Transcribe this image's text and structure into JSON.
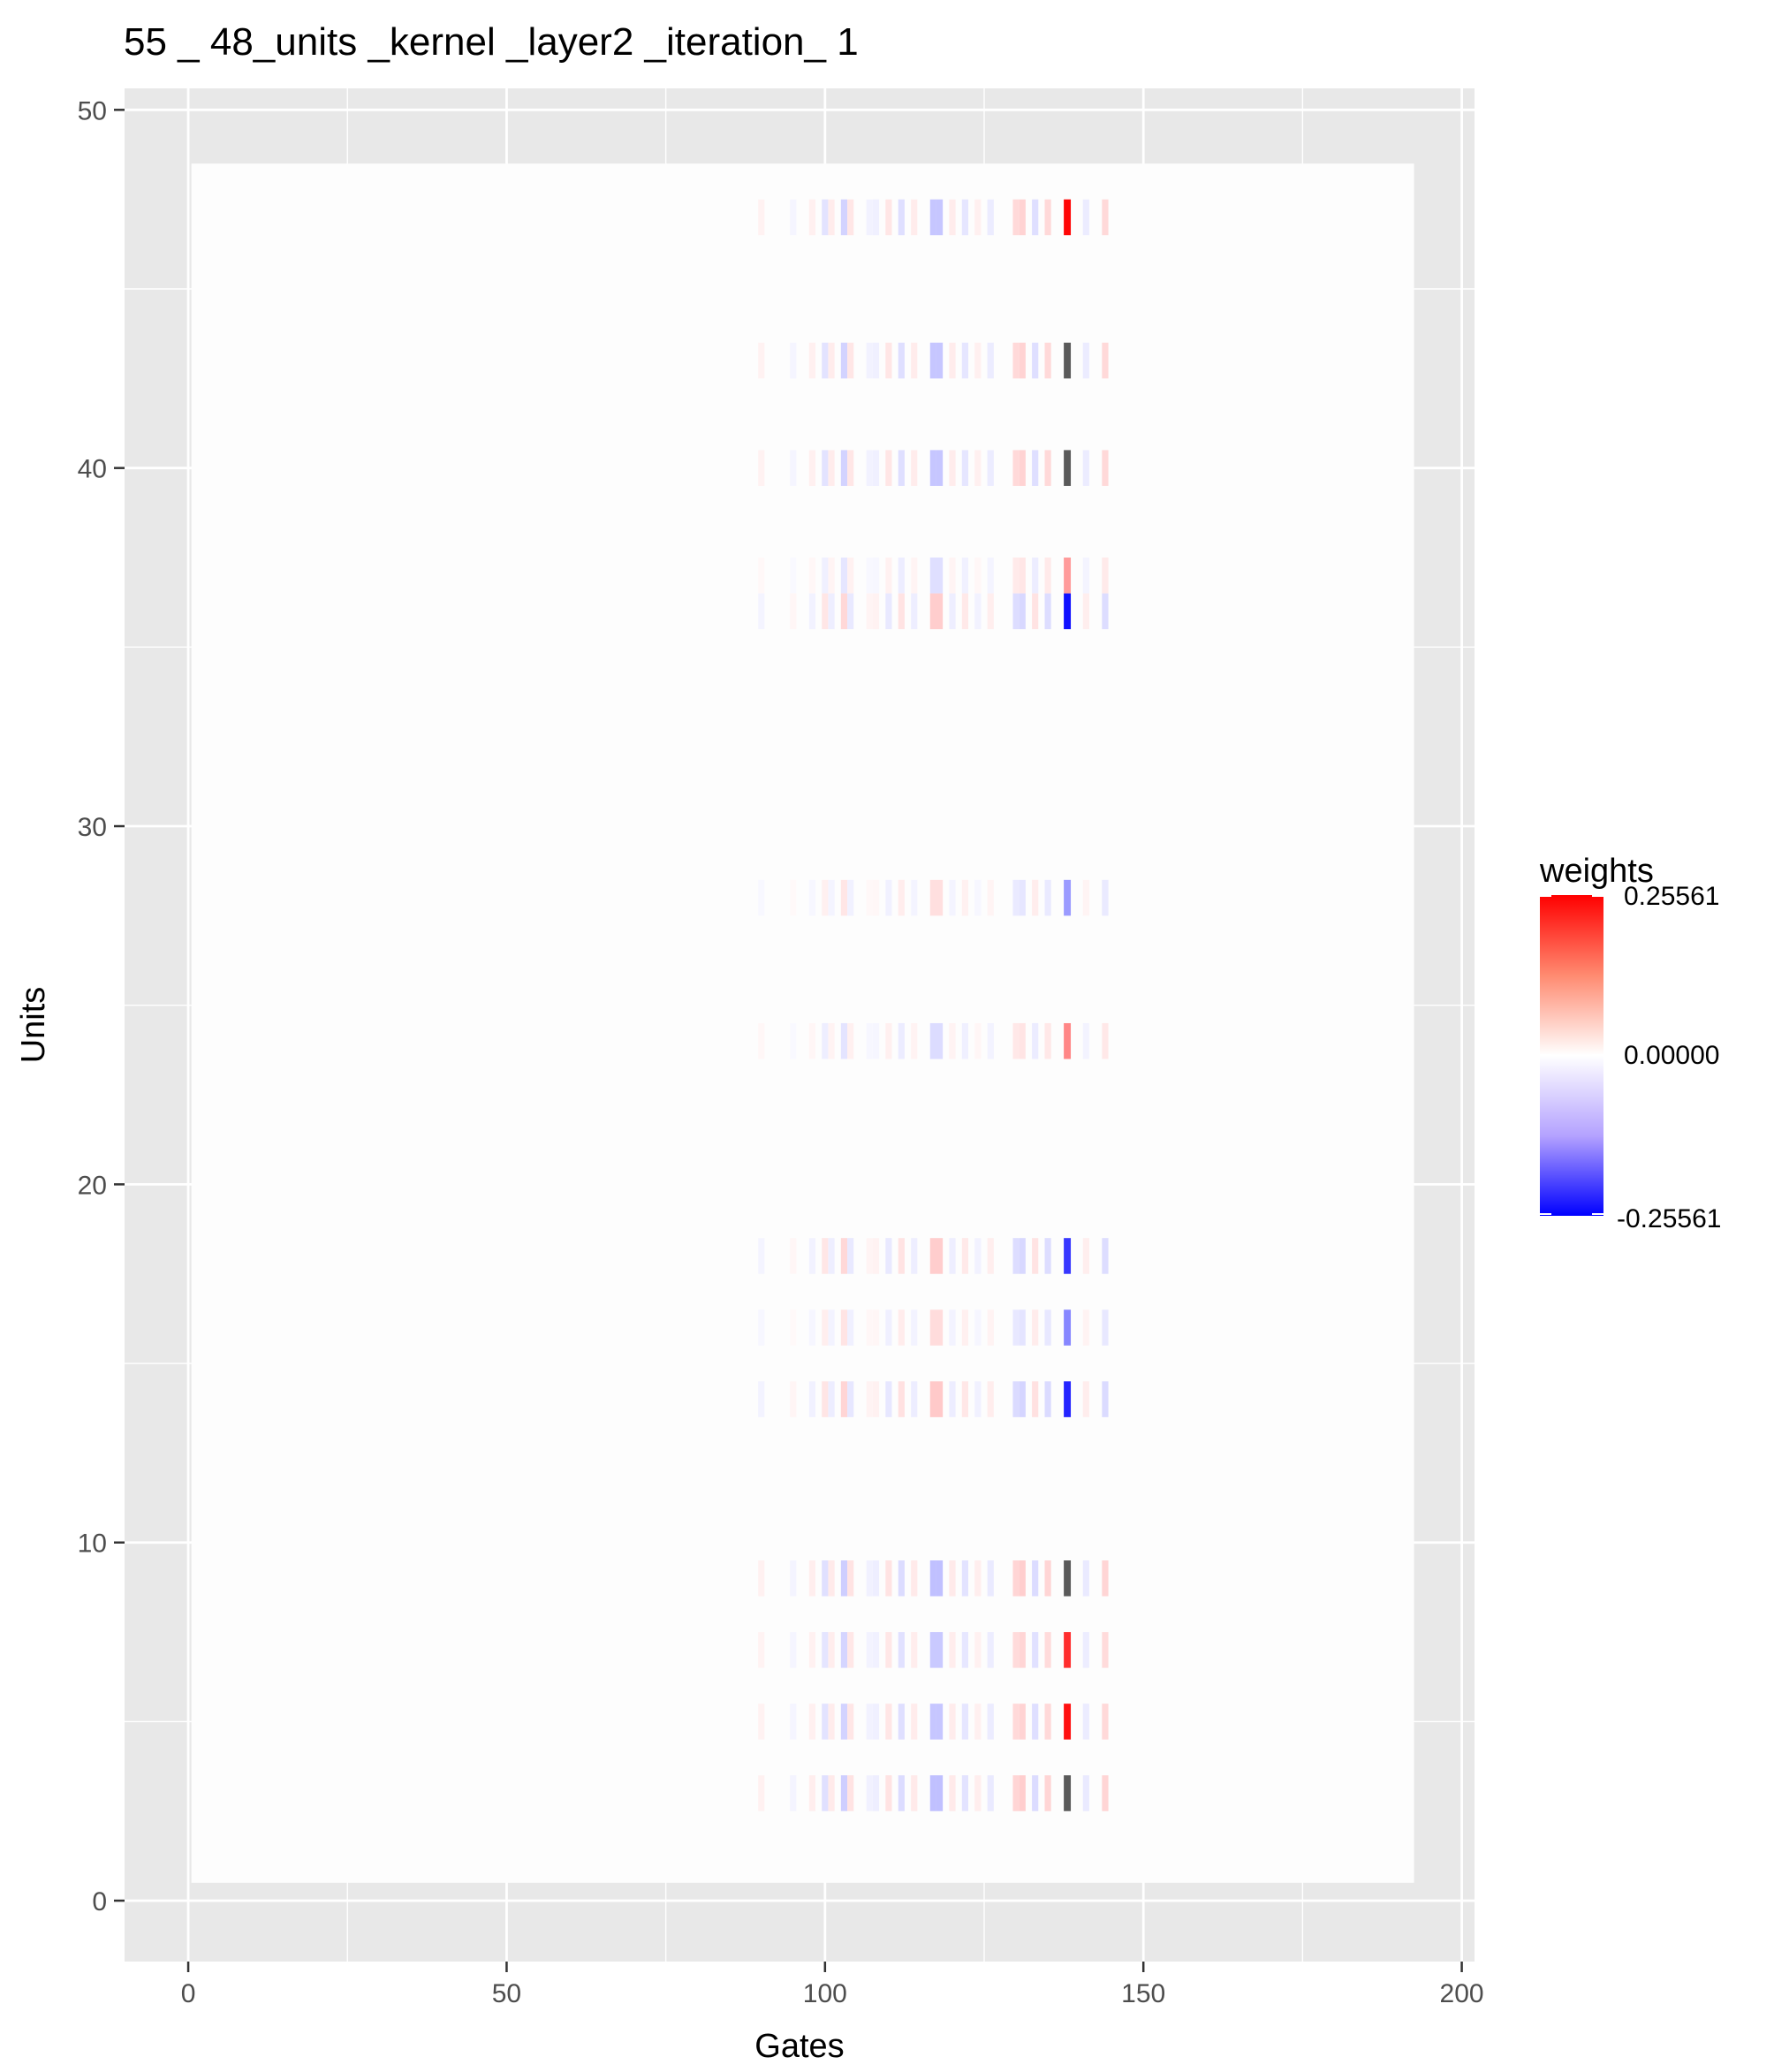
{
  "chart_data": {
    "type": "heatmap",
    "title": "55 _ 48_units _kernel _layer2 _iteration_ 1",
    "xlabel": "Gates",
    "ylabel": "Units",
    "xlim": [
      -10,
      202
    ],
    "ylim": [
      -1.7,
      50.6
    ],
    "x_ticks": [
      0,
      50,
      100,
      150,
      200
    ],
    "x_tick_labels": [
      "0",
      "50",
      "100",
      "150",
      "200"
    ],
    "y_ticks": [
      0,
      10,
      20,
      30,
      40,
      50
    ],
    "y_tick_labels": [
      "0",
      "10",
      "20",
      "30",
      "40",
      "50"
    ],
    "x_range": [
      1,
      192
    ],
    "y_range": [
      1,
      48
    ],
    "grid": true,
    "legend": {
      "title": "weights",
      "placement": "right",
      "labels": [
        "0.25561",
        "0.00000",
        "-0.25561"
      ],
      "limits": [
        -0.25561,
        0.25561
      ],
      "colors": {
        "high": "#ff0000",
        "mid": "#ffffff",
        "low": "#0000ff",
        "na": "#5a5a5a"
      }
    },
    "active_rows": [
      3,
      5,
      7,
      9,
      14,
      16,
      18,
      24,
      28,
      36,
      37,
      40,
      43,
      47
    ],
    "row_strength": {
      "3": 1.0,
      "5": 0.9,
      "7": 0.85,
      "9": 1.0,
      "14": 0.85,
      "16": 0.55,
      "18": 0.8,
      "24": 0.55,
      "28": 0.5,
      "36": 0.8,
      "37": 0.5,
      "40": 0.9,
      "43": 0.9,
      "47": 0.9
    },
    "column_pattern": {
      "90": 0.1,
      "95": 0.08,
      "98": 0.12,
      "100": -0.22,
      "101": -0.15,
      "103": 0.35,
      "104": 0.2,
      "107": 0.1,
      "108": -0.12,
      "110": 0.2,
      "112": -0.25,
      "114": 0.15,
      "117": 0.45,
      "118": -0.45,
      "120": 0.15,
      "122": -0.2,
      "124": 0.12,
      "126": -0.15,
      "130": 0.3,
      "131": -0.35,
      "133": 0.25,
      "135": -0.3,
      "138": 1.0,
      "141": 0.15,
      "144": 0.3
    },
    "row_sign": {
      "3": 1,
      "5": 1,
      "7": 1,
      "9": 1,
      "14": -1,
      "16": -1,
      "18": -1,
      "24": 1,
      "28": -1,
      "36": -1,
      "37": 1,
      "40": 1,
      "43": 1,
      "47": 1
    },
    "gate138_values": {
      "3": null,
      "5": 0.24,
      "7": 0.21,
      "9": null,
      "14": -0.22,
      "16": -0.12,
      "18": -0.2,
      "24": 0.12,
      "28": -0.1,
      "36": -0.24,
      "37": 0.1,
      "40": null,
      "43": null,
      "47": 0.25
    }
  }
}
